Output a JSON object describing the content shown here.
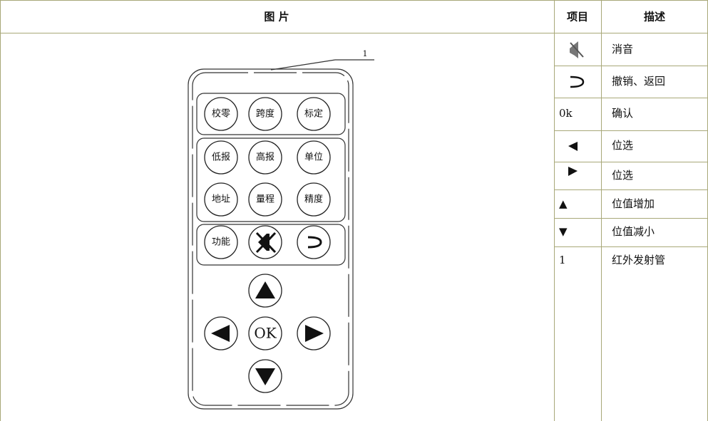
{
  "table": {
    "headers": [
      "图 片",
      "项目",
      "描述"
    ],
    "rows": [
      {
        "description": "消音"
      },
      {
        "description": "撤销、返回"
      },
      {
        "item": "0k",
        "description": "确认"
      },
      {
        "description": "位选"
      },
      {
        "description": "位选"
      },
      {
        "item": "▲",
        "description": "位值增加"
      },
      {
        "item": "▼",
        "description": "位值减小"
      },
      {
        "item": "1",
        "description": "红外发射管"
      }
    ]
  },
  "remote": {
    "callout": "1",
    "buttons": [
      "校零",
      "跨度",
      "标定",
      "低报",
      "高报",
      "单位",
      "地址",
      "量程",
      "精度",
      "功能"
    ],
    "ok_label": "OK"
  }
}
